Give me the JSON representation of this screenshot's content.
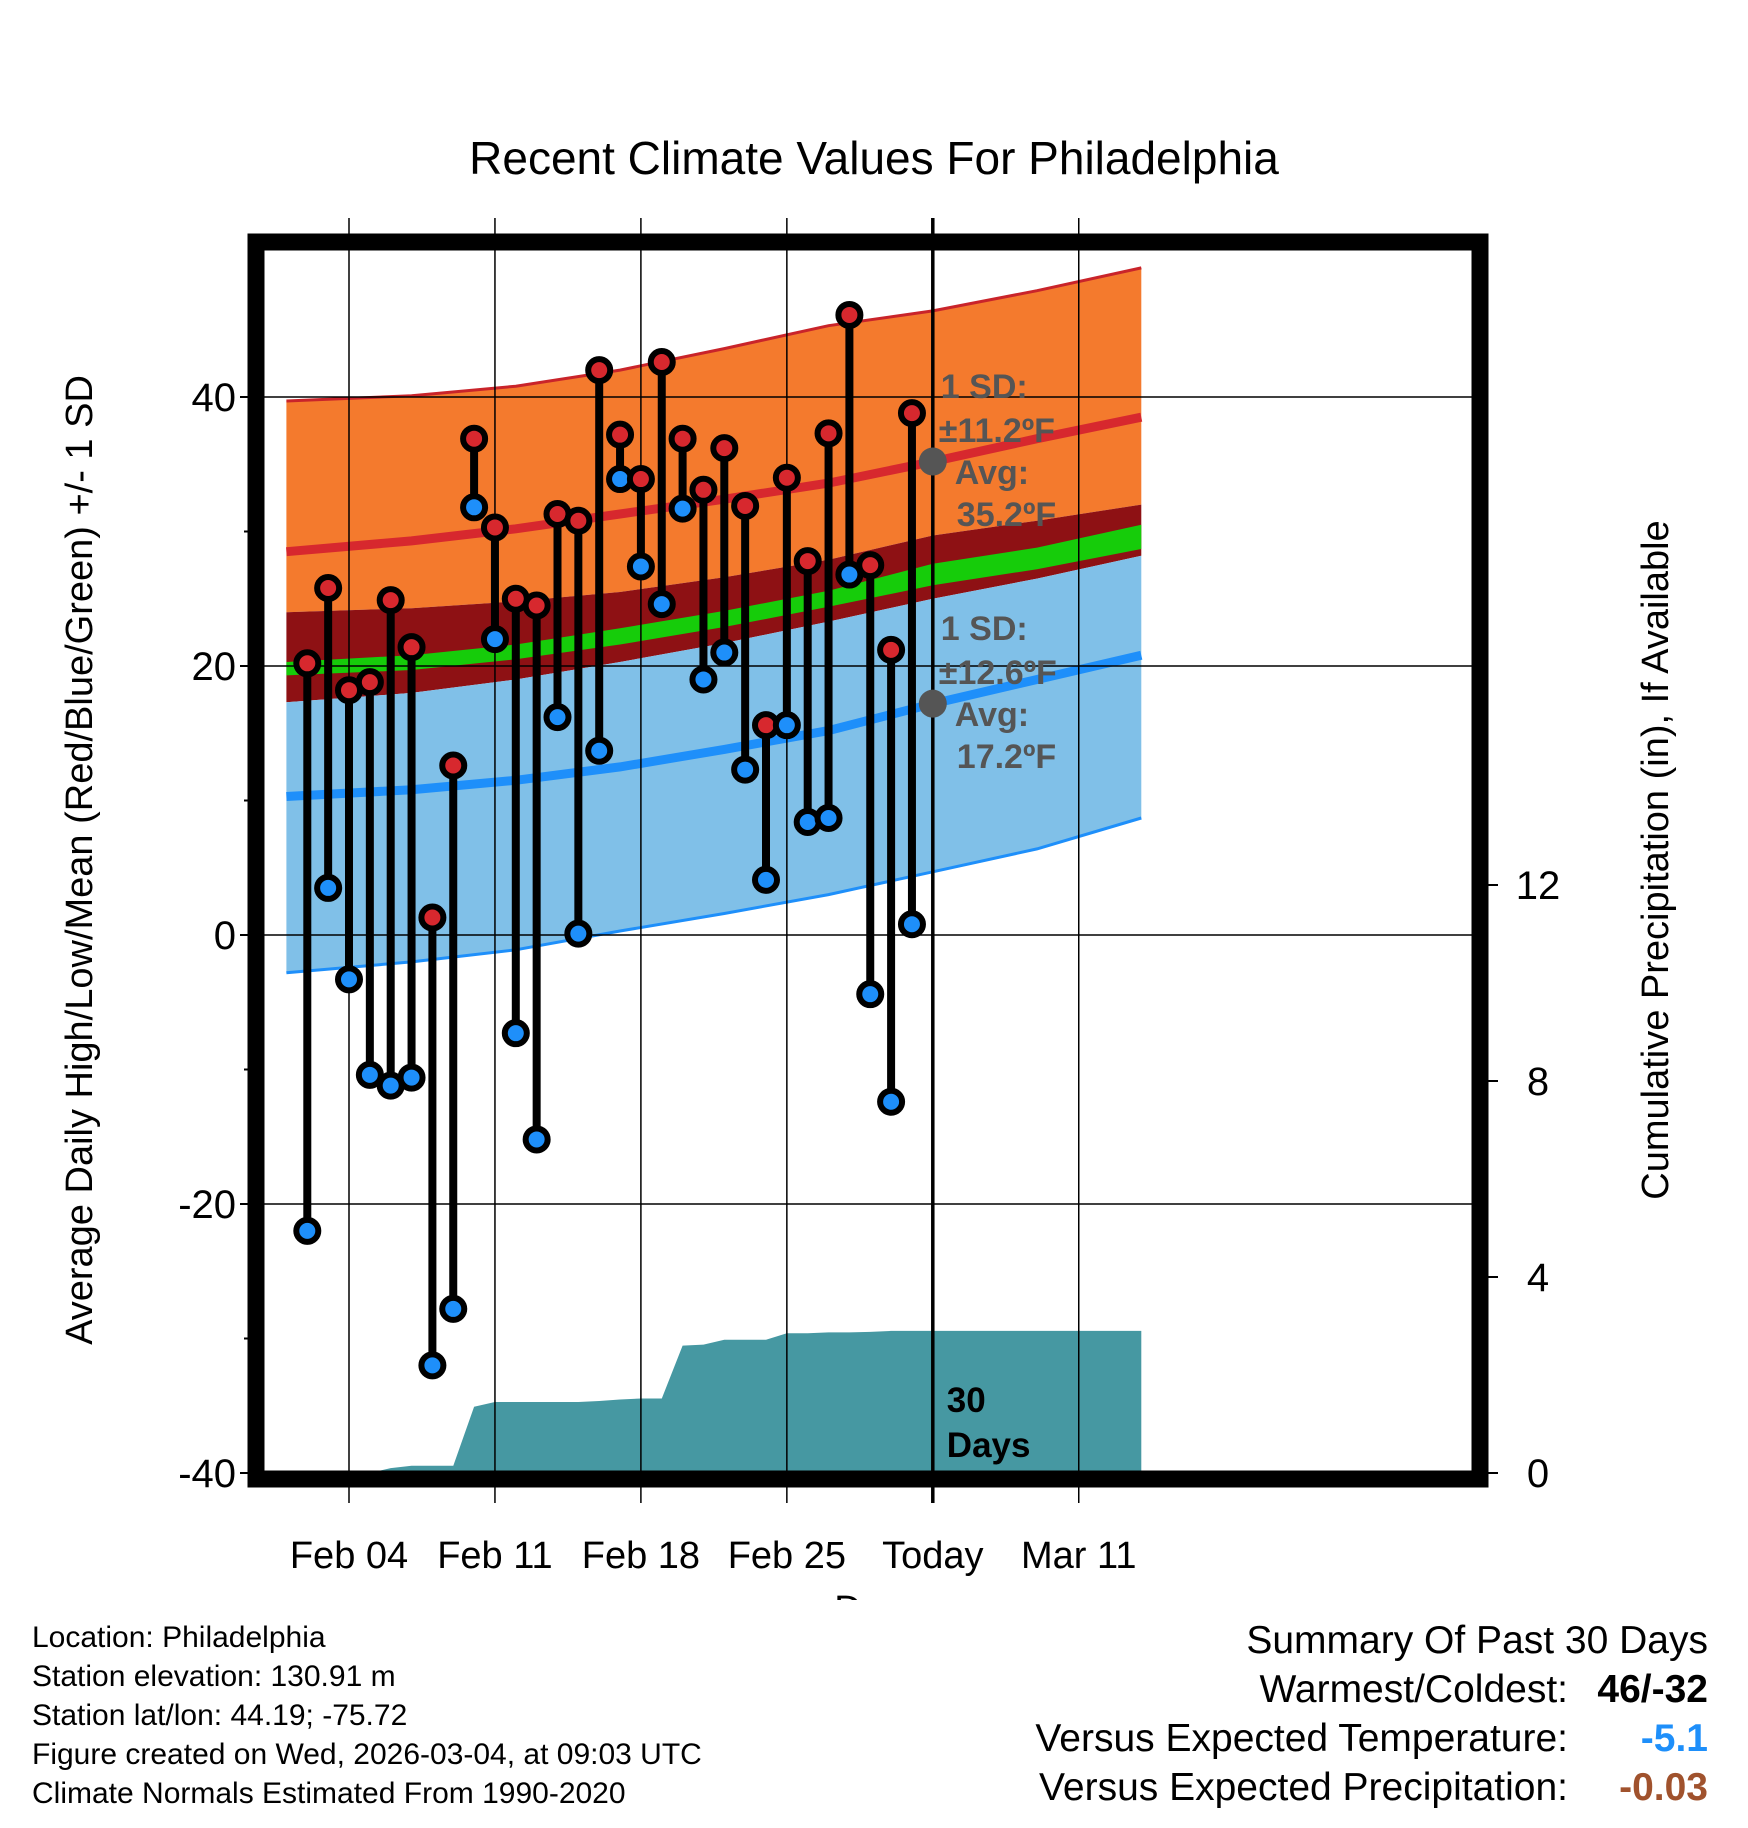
{
  "chart_data": {
    "type": "line",
    "title": "Recent Climate Values For Philadelphia",
    "xlabel": "Day",
    "ylabel_left": "Average Daily High/Low/Mean (Red/Blue/Green) +/- 1 SD",
    "ylabel_right": "Cumulative Precipitation (in), If Available",
    "ylim": [
      -40,
      50
    ],
    "y2lim": [
      0,
      30
    ],
    "xlim_days": [
      -28,
      12
    ],
    "left_ticks": [
      {
        "value": -40,
        "label": "-40"
      },
      {
        "value": -20,
        "label": "-20"
      },
      {
        "value": 0,
        "label": "0"
      },
      {
        "value": 20,
        "label": "20"
      },
      {
        "value": 40,
        "label": "40"
      }
    ],
    "right_ticks": [
      {
        "value": 0,
        "label": "0"
      },
      {
        "value": 4,
        "label": "4"
      },
      {
        "value": 8,
        "label": "8"
      },
      {
        "value": 12,
        "label": "12"
      }
    ],
    "x_ticks": [
      {
        "day": -28,
        "label": "Feb 04"
      },
      {
        "day": -21,
        "label": "Feb 11"
      },
      {
        "day": -14,
        "label": "Feb 18"
      },
      {
        "day": -7,
        "label": "Feb 25"
      },
      {
        "day": 0,
        "label": "Today"
      },
      {
        "day": 7,
        "label": "Mar 11"
      }
    ],
    "normals": {
      "days": [
        -31,
        -25,
        -20,
        -15,
        -10,
        -5,
        0,
        5,
        10
      ],
      "high_mean": [
        28.5,
        29.3,
        30.2,
        31.3,
        32.4,
        33.6,
        35.2,
        36.9,
        38.5
      ],
      "high_upper": [
        39.7,
        40.1,
        40.8,
        42.0,
        43.6,
        45.3,
        46.4,
        47.9,
        49.6
      ],
      "high_lower": [
        24.0,
        24.3,
        24.8,
        25.5,
        26.6,
        27.9,
        29.7,
        30.8,
        32.0
      ],
      "low_mean": [
        10.3,
        10.8,
        11.5,
        12.5,
        13.8,
        15.2,
        17.2,
        19.0,
        20.8
      ],
      "low_upper": [
        17.3,
        18.0,
        19.0,
        20.3,
        21.7,
        23.3,
        25.0,
        26.5,
        28.2
      ],
      "low_lower": [
        -2.8,
        -2.0,
        -1.1,
        0.3,
        1.6,
        3.0,
        4.7,
        6.4,
        8.7
      ],
      "mean_upper": [
        20.3,
        20.8,
        21.6,
        22.8,
        24.1,
        25.6,
        27.6,
        28.8,
        30.5
      ],
      "mean_lower": [
        19.3,
        19.7,
        20.5,
        21.6,
        22.9,
        24.4,
        26.0,
        27.2,
        28.7
      ]
    },
    "daily": {
      "days": [
        -30,
        -29,
        -28,
        -27,
        -26,
        -25,
        -24,
        -23,
        -22,
        -21,
        -20,
        -19,
        -18,
        -17,
        -16,
        -15,
        -14,
        -13,
        -12,
        -11,
        -10,
        -9,
        -8,
        -7,
        -6,
        -5,
        -4,
        -3,
        -2,
        -1
      ],
      "high": [
        20.2,
        25.8,
        18.2,
        18.8,
        24.9,
        21.4,
        1.3,
        12.6,
        36.9,
        30.3,
        25.0,
        24.5,
        31.3,
        30.8,
        42.0,
        37.2,
        33.9,
        42.6,
        36.9,
        33.1,
        36.2,
        31.9,
        15.6,
        34.0,
        27.8,
        37.3,
        46.1,
        27.5,
        21.2,
        38.8
      ],
      "low": [
        -22.0,
        3.5,
        -3.3,
        -10.4,
        -11.2,
        -10.6,
        -32.0,
        -27.8,
        31.8,
        22.0,
        -7.3,
        -15.2,
        16.2,
        0.1,
        13.7,
        33.9,
        27.4,
        24.6,
        31.7,
        19.0,
        21.0,
        12.3,
        4.1,
        15.6,
        8.4,
        8.7,
        26.8,
        -4.4,
        -12.4,
        0.8
      ]
    },
    "precip": {
      "days": [
        -31,
        -30,
        -29,
        -28,
        -27,
        -26,
        -25,
        -24,
        -23,
        -22,
        -21,
        -20,
        -19,
        -18,
        -17,
        -16,
        -15,
        -14,
        -13,
        -12,
        -11,
        -10,
        -9,
        -8,
        -7,
        -6,
        -5,
        -4,
        -3,
        -2,
        -1,
        0,
        10
      ],
      "cumulative": [
        0,
        0,
        0,
        0,
        0,
        0.1,
        0.15,
        0.15,
        0.15,
        1.35,
        1.45,
        1.45,
        1.45,
        1.45,
        1.45,
        1.47,
        1.5,
        1.52,
        1.52,
        2.6,
        2.62,
        2.72,
        2.72,
        2.72,
        2.85,
        2.85,
        2.87,
        2.87,
        2.88,
        2.9,
        2.9,
        2.9,
        2.9
      ]
    },
    "annotations": {
      "high_sd": "1 SD:",
      "high_sd_val": "±11.2ºF",
      "high_avg": "Avg:",
      "high_avg_val": "35.2ºF",
      "low_sd": "1 SD:",
      "low_sd_val": "±12.6ºF",
      "low_avg": "Avg:",
      "low_avg_val": "17.2ºF",
      "days_num": "30",
      "days_word": "Days"
    },
    "colors": {
      "high_band": "#f47a2d",
      "high_mean": "#d7282e",
      "high_band_edge": "#c9242a",
      "dark_band": "#8e1114",
      "mean_band": "#16cc0a",
      "low_band": "#80c0e8",
      "low_mean": "#1e8ffa",
      "precip": "#4698a2",
      "high_dot": "#d7282e",
      "low_dot": "#1e8ffa",
      "annotation": "#555555"
    }
  },
  "meta": {
    "location": "Location: Philadelphia",
    "elevation": "Station elevation: 130.91 m",
    "latlon": "Station lat/lon: 44.19; -75.72",
    "created": "Figure created on Wed, 2026-03-04, at 09:03 UTC",
    "normals": "Climate Normals Estimated From 1990-2020"
  },
  "summary": {
    "heading": "Summary Of Past 30 Days",
    "warmest_label": "Warmest/Coldest:",
    "warmest_value": "46/-32",
    "temp_label": "Versus Expected Temperature:",
    "temp_value": "-5.1",
    "temp_color": "#1e8ffa",
    "precip_label": "Versus Expected Precipitation:",
    "precip_value": "-0.03",
    "precip_color": "#a0522d"
  }
}
